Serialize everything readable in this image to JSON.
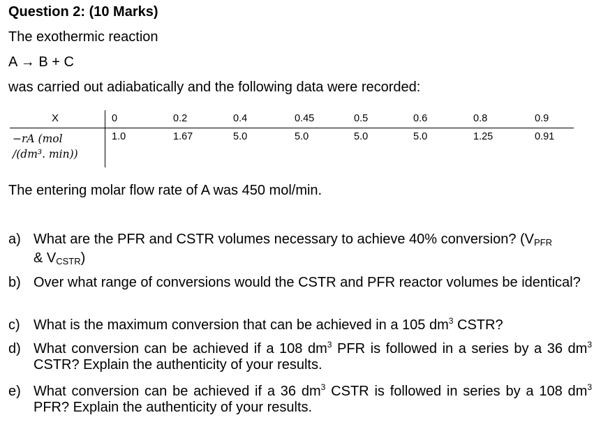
{
  "heading": "Question 2: (10 Marks)",
  "intro": "The exothermic reaction",
  "reaction": "A → B + C",
  "condition": "was carried out adiabatically and the following data were recorded:",
  "table": {
    "row_x_label": "X",
    "row_ra_label_line1": "−rₐ (mol",
    "row_ra_label_line1_display": "−rA (mol",
    "row_ra_label_line2": "/(dm³. min))",
    "x_values": [
      "0",
      "0.2",
      "0.4",
      "0.45",
      "0.5",
      "0.6",
      "0.8",
      "0.9"
    ],
    "ra_values": [
      "1.0",
      "1.67",
      "5.0",
      "5.0",
      "5.0",
      "5.0",
      "1.25",
      "0.91"
    ]
  },
  "flowrate": "The entering molar flow rate of A was 450 mol/min.",
  "questions": {
    "a": {
      "letter": "a)",
      "text_part1": "What are the PFR and CSTR volumes necessary to achieve 40% conversion? (V",
      "sub1": "PFR",
      "text_part2": "& V",
      "sub2": "CSTR",
      "text_part3": ")"
    },
    "b": {
      "letter": "b)",
      "text": "Over what range of conversions would the CSTR and PFR reactor volumes be identical?"
    },
    "c": {
      "letter": "c)",
      "text_part1": "What is the maximum conversion that can be achieved in a 105 dm",
      "sup": "3",
      "text_part2": " CSTR?"
    },
    "d": {
      "letter": "d)",
      "text_part1": "What conversion can be achieved if a 108 dm",
      "sup1": "3",
      "text_part2": " PFR is followed in a series by a 36 dm",
      "sup2": "3",
      "text_part3": " CSTR? Explain the authenticity of your results."
    },
    "e": {
      "letter": "e)",
      "text_part1": "What conversion can be achieved if a 36 dm",
      "sup1": "3",
      "text_part2": " CSTR is followed in series by a 108 dm",
      "sup2": "3",
      "text_part3": " PFR? Explain the authenticity of your results."
    }
  }
}
